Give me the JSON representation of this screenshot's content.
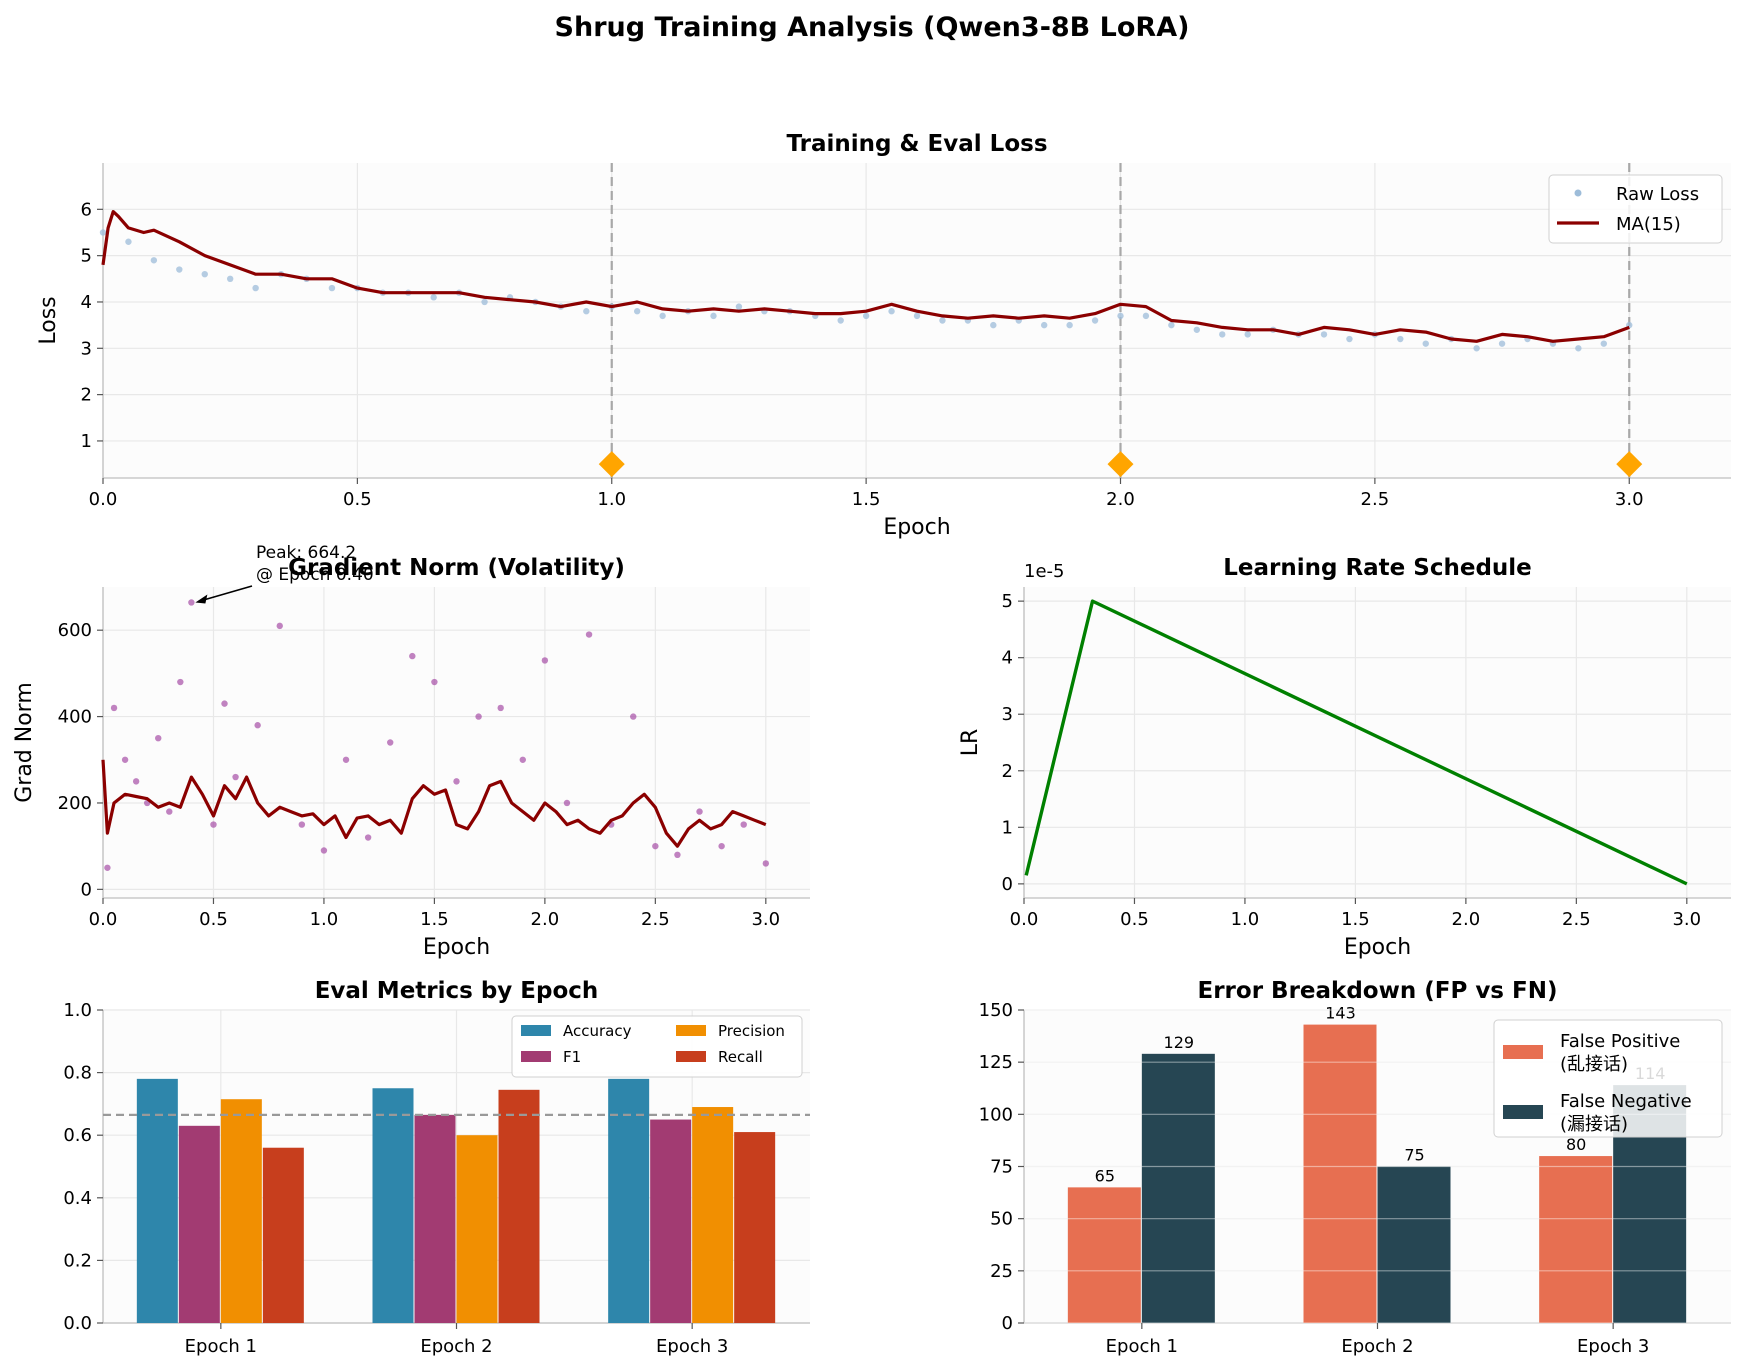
{
  "suptitle": "Shrug Training Analysis (Qwen3-8B LoRA)",
  "colors": {
    "raw_loss": "#9dbcd9",
    "ma": "#8b0000",
    "grad_points": "#a040a0",
    "lr_line": "#008000",
    "eval_marker": "#ffa500",
    "accuracy": "#2e86ab",
    "f1": "#a23b72",
    "precision": "#f18f01",
    "recall": "#c73e1d",
    "false_positive": "#e76f51",
    "false_negative": "#264653",
    "axes_bg": "#fcfcfc",
    "grid": "#e8e8e8"
  },
  "chart_data": [
    {
      "type": "scatter",
      "title": "Training & Eval Loss",
      "xlabel": "Epoch",
      "ylabel": "Loss",
      "xlim": [
        0,
        3.2
      ],
      "ylim": [
        0.2,
        7.0
      ],
      "xticks": [
        0,
        0.5,
        1.0,
        1.5,
        2.0,
        2.5,
        3.0
      ],
      "xtick_labels": [
        "0.0",
        "0.5",
        "1.0",
        "1.5",
        "2.0",
        "2.5",
        "3.0"
      ],
      "yticks": [
        1,
        2,
        3,
        4,
        5,
        6
      ],
      "ytick_labels": [
        "1",
        "2",
        "3",
        "4",
        "5",
        "6"
      ],
      "grid": true,
      "legend_position": "top-right",
      "series": [
        {
          "name": "Raw Loss",
          "kind": "scatter",
          "color": "#9dbcd9",
          "x": [
            0.0,
            0.05,
            0.1,
            0.15,
            0.2,
            0.25,
            0.3,
            0.35,
            0.4,
            0.45,
            0.5,
            0.55,
            0.6,
            0.65,
            0.7,
            0.75,
            0.8,
            0.85,
            0.9,
            0.95,
            1.0,
            1.05,
            1.1,
            1.15,
            1.2,
            1.25,
            1.3,
            1.35,
            1.4,
            1.45,
            1.5,
            1.55,
            1.6,
            1.65,
            1.7,
            1.75,
            1.8,
            1.85,
            1.9,
            1.95,
            2.0,
            2.05,
            2.1,
            2.15,
            2.2,
            2.25,
            2.3,
            2.35,
            2.4,
            2.45,
            2.5,
            2.55,
            2.6,
            2.65,
            2.7,
            2.75,
            2.8,
            2.85,
            2.9,
            2.95,
            3.0
          ],
          "y": [
            5.5,
            5.3,
            4.9,
            4.7,
            4.6,
            4.5,
            4.3,
            4.6,
            4.5,
            4.3,
            4.3,
            4.2,
            4.2,
            4.1,
            4.2,
            4.0,
            4.1,
            4.0,
            3.9,
            3.8,
            3.9,
            3.8,
            3.7,
            3.8,
            3.7,
            3.9,
            3.8,
            3.8,
            3.7,
            3.6,
            3.7,
            3.8,
            3.7,
            3.6,
            3.6,
            3.5,
            3.6,
            3.5,
            3.5,
            3.6,
            3.7,
            3.7,
            3.5,
            3.4,
            3.3,
            3.3,
            3.4,
            3.3,
            3.3,
            3.2,
            3.3,
            3.2,
            3.1,
            3.2,
            3.0,
            3.1,
            3.2,
            3.1,
            3.0,
            3.1,
            3.5
          ]
        },
        {
          "name": "MA(15)",
          "kind": "line",
          "color": "#8b0000",
          "x": [
            0.0,
            0.01,
            0.02,
            0.03,
            0.05,
            0.08,
            0.1,
            0.15,
            0.2,
            0.25,
            0.3,
            0.35,
            0.4,
            0.45,
            0.5,
            0.55,
            0.6,
            0.65,
            0.7,
            0.75,
            0.8,
            0.85,
            0.9,
            0.95,
            1.0,
            1.05,
            1.1,
            1.15,
            1.2,
            1.25,
            1.3,
            1.35,
            1.4,
            1.45,
            1.5,
            1.55,
            1.6,
            1.65,
            1.7,
            1.75,
            1.8,
            1.85,
            1.9,
            1.95,
            2.0,
            2.05,
            2.1,
            2.15,
            2.2,
            2.25,
            2.3,
            2.35,
            2.4,
            2.45,
            2.5,
            2.55,
            2.6,
            2.65,
            2.7,
            2.75,
            2.8,
            2.85,
            2.9,
            2.95,
            3.0
          ],
          "y": [
            4.8,
            5.6,
            5.95,
            5.85,
            5.6,
            5.5,
            5.55,
            5.3,
            5.0,
            4.8,
            4.6,
            4.6,
            4.5,
            4.5,
            4.3,
            4.2,
            4.2,
            4.2,
            4.2,
            4.1,
            4.05,
            4.0,
            3.9,
            4.0,
            3.9,
            4.0,
            3.85,
            3.8,
            3.85,
            3.8,
            3.85,
            3.8,
            3.75,
            3.75,
            3.8,
            3.95,
            3.8,
            3.7,
            3.65,
            3.7,
            3.65,
            3.7,
            3.65,
            3.75,
            3.95,
            3.9,
            3.6,
            3.55,
            3.45,
            3.4,
            3.4,
            3.3,
            3.45,
            3.4,
            3.3,
            3.4,
            3.35,
            3.2,
            3.15,
            3.3,
            3.25,
            3.15,
            3.2,
            3.25,
            3.45
          ]
        },
        {
          "name": "",
          "kind": "eval_marker",
          "color": "#ffa500",
          "x": [
            1.0,
            2.0,
            3.0
          ],
          "y": [
            0.5,
            0.5,
            0.5
          ]
        }
      ],
      "epoch_boundaries": [
        1.0,
        2.0,
        3.0
      ]
    },
    {
      "type": "scatter",
      "title": "Gradient Norm (Volatility)",
      "xlabel": "Epoch",
      "ylabel": "Grad Norm",
      "xlim": [
        0,
        3.2
      ],
      "ylim": [
        -20,
        700
      ],
      "xticks": [
        0,
        0.5,
        1.0,
        1.5,
        2.0,
        2.5,
        3.0
      ],
      "xtick_labels": [
        "0.0",
        "0.5",
        "1.0",
        "1.5",
        "2.0",
        "2.5",
        "3.0"
      ],
      "yticks": [
        0,
        200,
        400,
        600
      ],
      "ytick_labels": [
        "0",
        "200",
        "400",
        "600"
      ],
      "grid": true,
      "annotation": {
        "text_line1": "Peak: 664.2",
        "text_line2": "@ Epoch 0.40",
        "x": 0.4,
        "y": 664.2
      },
      "series": [
        {
          "name": "",
          "kind": "scatter",
          "color": "#a040a0",
          "x": [
            0.02,
            0.05,
            0.1,
            0.15,
            0.2,
            0.25,
            0.3,
            0.35,
            0.4,
            0.5,
            0.55,
            0.6,
            0.7,
            0.8,
            0.9,
            1.0,
            1.1,
            1.2,
            1.3,
            1.4,
            1.5,
            1.6,
            1.7,
            1.8,
            1.9,
            2.0,
            2.1,
            2.2,
            2.3,
            2.4,
            2.5,
            2.6,
            2.7,
            2.8,
            2.9,
            3.0
          ],
          "y": [
            50,
            420,
            300,
            250,
            200,
            350,
            180,
            480,
            664.2,
            150,
            430,
            260,
            380,
            610,
            150,
            90,
            300,
            120,
            340,
            540,
            480,
            250,
            400,
            420,
            300,
            530,
            200,
            590,
            150,
            400,
            100,
            80,
            180,
            100,
            150,
            60
          ]
        },
        {
          "name": "",
          "kind": "line",
          "color": "#8b0000",
          "x": [
            0.0,
            0.02,
            0.05,
            0.1,
            0.15,
            0.2,
            0.25,
            0.3,
            0.35,
            0.4,
            0.45,
            0.5,
            0.55,
            0.6,
            0.65,
            0.7,
            0.75,
            0.8,
            0.85,
            0.9,
            0.95,
            1.0,
            1.05,
            1.1,
            1.15,
            1.2,
            1.25,
            1.3,
            1.35,
            1.4,
            1.45,
            1.5,
            1.55,
            1.6,
            1.65,
            1.7,
            1.75,
            1.8,
            1.85,
            1.9,
            1.95,
            2.0,
            2.05,
            2.1,
            2.15,
            2.2,
            2.25,
            2.3,
            2.35,
            2.4,
            2.45,
            2.5,
            2.55,
            2.6,
            2.65,
            2.7,
            2.75,
            2.8,
            2.85,
            2.9,
            2.95,
            3.0
          ],
          "y": [
            300,
            130,
            200,
            220,
            215,
            210,
            190,
            200,
            190,
            260,
            220,
            170,
            240,
            210,
            260,
            200,
            170,
            190,
            180,
            170,
            175,
            150,
            170,
            120,
            165,
            170,
            150,
            160,
            130,
            210,
            240,
            220,
            230,
            150,
            140,
            180,
            240,
            250,
            200,
            180,
            160,
            200,
            180,
            150,
            160,
            140,
            130,
            160,
            170,
            200,
            220,
            190,
            130,
            100,
            140,
            160,
            140,
            150,
            180,
            170,
            160,
            150
          ]
        }
      ]
    },
    {
      "type": "line",
      "title": "Learning Rate Schedule",
      "xlabel": "Epoch",
      "ylabel": "LR",
      "offset_text": "1e-5",
      "xlim": [
        0,
        3.2
      ],
      "ylim": [
        -0.25,
        5.25
      ],
      "xticks": [
        0,
        0.5,
        1.0,
        1.5,
        2.0,
        2.5,
        3.0
      ],
      "xtick_labels": [
        "0.0",
        "0.5",
        "1.0",
        "1.5",
        "2.0",
        "2.5",
        "3.0"
      ],
      "yticks": [
        0,
        1,
        2,
        3,
        4,
        5
      ],
      "ytick_labels": [
        "0",
        "1",
        "2",
        "3",
        "4",
        "5"
      ],
      "grid": true,
      "series": [
        {
          "name": "",
          "kind": "line",
          "color": "#008000",
          "x": [
            0.01,
            0.31,
            3.0
          ],
          "y": [
            0.15,
            5.0,
            0.0
          ]
        }
      ]
    },
    {
      "type": "bar",
      "title": "Eval Metrics by Epoch",
      "categories": [
        "Epoch 1",
        "Epoch 2",
        "Epoch 3"
      ],
      "ylim": [
        0,
        1.0
      ],
      "yticks": [
        0,
        0.2,
        0.4,
        0.6,
        0.8,
        1.0
      ],
      "ytick_labels": [
        "0.0",
        "0.2",
        "0.4",
        "0.6",
        "0.8",
        "1.0"
      ],
      "reference_line": 0.665,
      "grid": true,
      "legend_position": "top-right",
      "series": [
        {
          "name": "Accuracy",
          "color": "#2e86ab",
          "values": [
            0.78,
            0.75,
            0.78
          ]
        },
        {
          "name": "F1",
          "color": "#a23b72",
          "values": [
            0.63,
            0.665,
            0.65
          ]
        },
        {
          "name": "Precision",
          "color": "#f18f01",
          "values": [
            0.715,
            0.6,
            0.69
          ]
        },
        {
          "name": "Recall",
          "color": "#c73e1d",
          "values": [
            0.56,
            0.745,
            0.61
          ]
        }
      ]
    },
    {
      "type": "bar",
      "title": "Error Breakdown (FP vs FN)",
      "categories": [
        "Epoch 1",
        "Epoch 2",
        "Epoch 3"
      ],
      "ylim": [
        0,
        150
      ],
      "yticks": [
        0,
        25,
        50,
        75,
        100,
        125,
        150
      ],
      "ytick_labels": [
        "0",
        "25",
        "50",
        "75",
        "100",
        "125",
        "150"
      ],
      "grid": true,
      "legend_position": "top-right",
      "series": [
        {
          "name": "False Positive",
          "name_line2": "(乱接话)",
          "color": "#e76f51",
          "values": [
            65,
            143,
            80
          ]
        },
        {
          "name": "False Negative",
          "name_line2": "(漏接话)",
          "color": "#264653",
          "values": [
            129,
            75,
            114
          ]
        }
      ]
    }
  ]
}
